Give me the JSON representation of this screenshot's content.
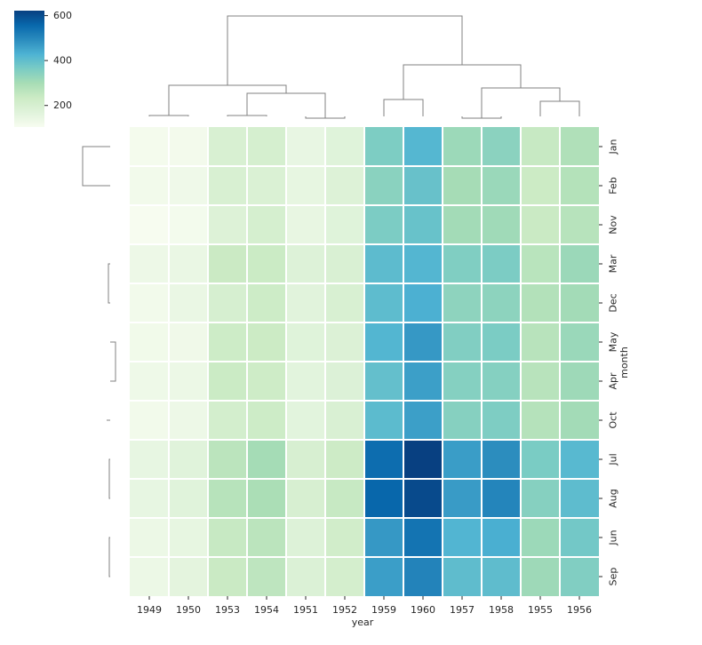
{
  "chart_data": {
    "type": "heatmap",
    "title": "",
    "xlabel": "year",
    "ylabel": "month",
    "x": [
      "1949",
      "1950",
      "1953",
      "1954",
      "1951",
      "1952",
      "1959",
      "1960",
      "1957",
      "1958",
      "1955",
      "1956"
    ],
    "y": [
      "Jan",
      "Feb",
      "Nov",
      "Mar",
      "Dec",
      "May",
      "Apr",
      "Oct",
      "Jul",
      "Aug",
      "Jun",
      "Sep"
    ],
    "values": [
      [
        112,
        115,
        196,
        204,
        145,
        171,
        360,
        417,
        315,
        340,
        242,
        284
      ],
      [
        118,
        126,
        196,
        188,
        150,
        180,
        342,
        391,
        301,
        318,
        233,
        277
      ],
      [
        104,
        114,
        180,
        203,
        146,
        172,
        362,
        390,
        305,
        310,
        237,
        271
      ],
      [
        132,
        141,
        236,
        235,
        178,
        193,
        406,
        419,
        356,
        362,
        267,
        317
      ],
      [
        118,
        140,
        201,
        229,
        166,
        194,
        405,
        432,
        336,
        337,
        278,
        306
      ],
      [
        121,
        125,
        229,
        234,
        172,
        183,
        420,
        472,
        355,
        363,
        270,
        318
      ],
      [
        129,
        135,
        235,
        227,
        163,
        181,
        396,
        461,
        348,
        348,
        269,
        313
      ],
      [
        119,
        133,
        211,
        229,
        162,
        191,
        407,
        461,
        347,
        359,
        274,
        306
      ],
      [
        148,
        170,
        264,
        302,
        199,
        230,
        548,
        622,
        465,
        491,
        364,
        413
      ],
      [
        148,
        170,
        272,
        293,
        199,
        242,
        559,
        606,
        467,
        505,
        347,
        405
      ],
      [
        135,
        149,
        243,
        264,
        178,
        218,
        472,
        535,
        422,
        435,
        315,
        374
      ],
      [
        136,
        158,
        237,
        259,
        184,
        209,
        463,
        508,
        404,
        404,
        312,
        355
      ]
    ],
    "colorbar": {
      "colormap": "YlGnBu",
      "range": [
        104,
        622
      ],
      "ticks": [
        200,
        400,
        600
      ]
    },
    "col_dendrogram": [
      [
        0,
        1,
        0
      ],
      [
        4,
        5,
        0
      ],
      [
        2,
        3,
        0
      ],
      [
        13,
        14,
        0
      ],
      [
        12,
        15,
        0
      ],
      [
        6,
        7,
        0
      ],
      [
        8,
        9,
        0
      ],
      [
        10,
        11,
        0
      ],
      [
        18,
        19,
        0
      ],
      [
        17,
        20,
        0
      ],
      [
        16,
        21,
        0
      ]
    ],
    "row_dendrogram": [
      [
        3,
        4,
        0
      ],
      [
        5,
        6,
        0
      ],
      [
        7,
        18,
        0
      ],
      [
        17,
        19,
        0
      ],
      [
        0,
        1,
        0
      ],
      [
        21,
        2,
        0
      ],
      [
        20,
        22,
        0
      ],
      [
        8,
        9,
        0
      ],
      [
        10,
        11,
        0
      ],
      [
        24,
        25,
        0
      ],
      [
        23,
        26,
        0
      ]
    ],
    "grid": false,
    "legend": "top-left"
  }
}
